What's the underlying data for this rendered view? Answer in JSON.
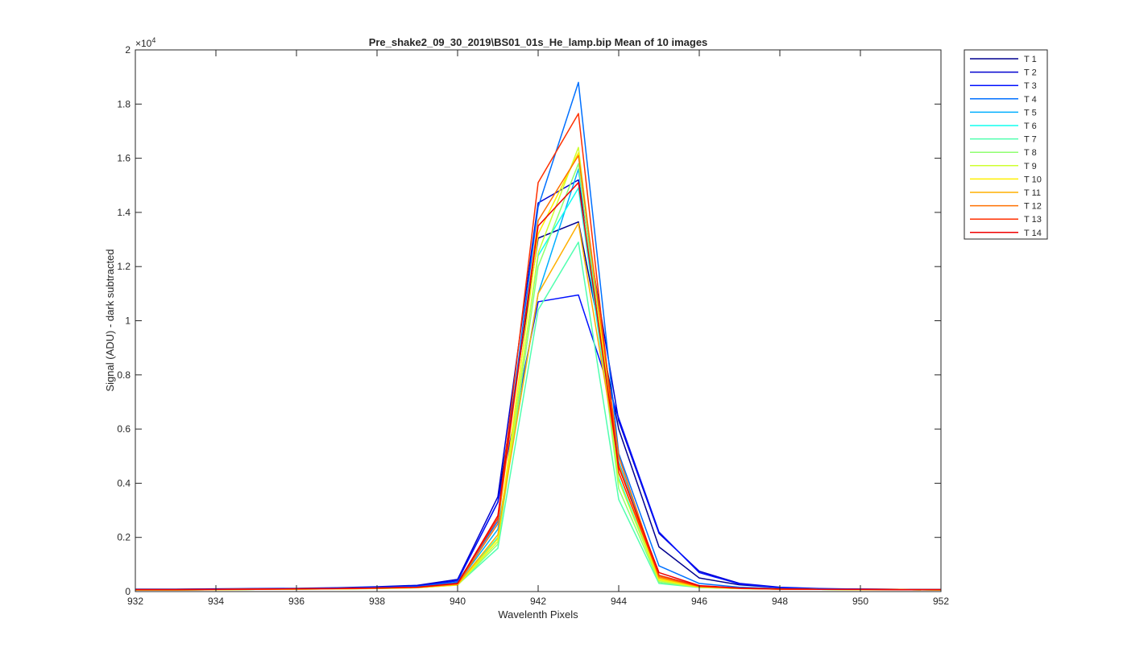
{
  "chart_data": {
    "type": "line",
    "title": "Pre_shake2_09_30_2019\\BS01_01s_He_lamp.bip  Mean of 10 images",
    "xlabel": "Wavelenth Pixels",
    "ylabel": "Signal (ADU) - dark subtracted",
    "exponent_base": "×10",
    "exponent_power": "4",
    "xlim": [
      932,
      952
    ],
    "ylim": [
      0,
      2
    ],
    "y_multiplier": 10000,
    "x_ticks": [
      932,
      934,
      936,
      938,
      940,
      942,
      944,
      946,
      948,
      950,
      952
    ],
    "x_tick_labels": [
      "932",
      "934",
      "936",
      "938",
      "940",
      "942",
      "944",
      "946",
      "948",
      "950",
      "952"
    ],
    "y_ticks": [
      0,
      0.2,
      0.4,
      0.6,
      0.8,
      1,
      1.2,
      1.4,
      1.6,
      1.8,
      2
    ],
    "y_tick_labels": [
      "0",
      "0.2",
      "0.4",
      "0.6",
      "0.8",
      "1",
      "1.2",
      "1.4",
      "1.6",
      "1.8",
      "2"
    ],
    "grid": false,
    "legend_position": "outside-right",
    "x": [
      932,
      933,
      934,
      935,
      936,
      937,
      938,
      939,
      940,
      941,
      942,
      943,
      944,
      945,
      946,
      947,
      948,
      949,
      950,
      951,
      952
    ],
    "series": [
      {
        "name": "T 1",
        "color": "#00008f",
        "values": [
          0.008,
          0.008,
          0.009,
          0.01,
          0.011,
          0.013,
          0.016,
          0.02,
          0.04,
          0.33,
          1.305,
          1.365,
          0.6,
          0.165,
          0.05,
          0.025,
          0.015,
          0.01,
          0.009,
          0.008,
          0.008
        ]
      },
      {
        "name": "T 2",
        "color": "#0000cf",
        "values": [
          0.009,
          0.009,
          0.01,
          0.011,
          0.012,
          0.014,
          0.018,
          0.023,
          0.045,
          0.35,
          1.435,
          1.52,
          0.63,
          0.215,
          0.075,
          0.03,
          0.016,
          0.011,
          0.009,
          0.008,
          0.008
        ]
      },
      {
        "name": "T 3",
        "color": "#0010ff",
        "values": [
          0.008,
          0.008,
          0.009,
          0.01,
          0.011,
          0.013,
          0.016,
          0.02,
          0.04,
          0.33,
          1.07,
          1.095,
          0.64,
          0.22,
          0.07,
          0.028,
          0.015,
          0.01,
          0.009,
          0.008,
          0.008
        ]
      },
      {
        "name": "T 4",
        "color": "#0070ff",
        "values": [
          0.007,
          0.007,
          0.008,
          0.009,
          0.01,
          0.012,
          0.014,
          0.018,
          0.035,
          0.26,
          1.42,
          1.88,
          0.51,
          0.095,
          0.03,
          0.016,
          0.011,
          0.009,
          0.008,
          0.007,
          0.007
        ]
      },
      {
        "name": "T 5",
        "color": "#00afff",
        "values": [
          0.007,
          0.007,
          0.008,
          0.009,
          0.01,
          0.011,
          0.013,
          0.016,
          0.03,
          0.23,
          1.1,
          1.56,
          0.48,
          0.06,
          0.02,
          0.013,
          0.01,
          0.008,
          0.008,
          0.007,
          0.007
        ]
      },
      {
        "name": "T 6",
        "color": "#10ffef",
        "values": [
          0.006,
          0.006,
          0.007,
          0.008,
          0.009,
          0.01,
          0.012,
          0.015,
          0.028,
          0.2,
          1.24,
          1.49,
          0.42,
          0.04,
          0.016,
          0.012,
          0.009,
          0.008,
          0.007,
          0.007,
          0.006
        ]
      },
      {
        "name": "T 7",
        "color": "#50ffaf",
        "values": [
          0.006,
          0.006,
          0.007,
          0.008,
          0.009,
          0.01,
          0.012,
          0.014,
          0.025,
          0.16,
          1.04,
          1.29,
          0.34,
          0.03,
          0.015,
          0.011,
          0.009,
          0.008,
          0.007,
          0.007,
          0.006
        ]
      },
      {
        "name": "T 8",
        "color": "#8fff70",
        "values": [
          0.006,
          0.006,
          0.007,
          0.008,
          0.009,
          0.01,
          0.011,
          0.014,
          0.024,
          0.175,
          1.2,
          1.58,
          0.38,
          0.035,
          0.015,
          0.011,
          0.009,
          0.008,
          0.007,
          0.007,
          0.006
        ]
      },
      {
        "name": "T 9",
        "color": "#cfff30",
        "values": [
          0.006,
          0.006,
          0.007,
          0.008,
          0.009,
          0.01,
          0.011,
          0.014,
          0.024,
          0.185,
          1.25,
          1.64,
          0.41,
          0.04,
          0.016,
          0.011,
          0.009,
          0.008,
          0.007,
          0.007,
          0.006
        ]
      },
      {
        "name": "T 10",
        "color": "#ffef00",
        "values": [
          0.006,
          0.006,
          0.007,
          0.008,
          0.009,
          0.01,
          0.012,
          0.014,
          0.025,
          0.195,
          1.32,
          1.62,
          0.44,
          0.045,
          0.017,
          0.012,
          0.009,
          0.008,
          0.007,
          0.007,
          0.006
        ]
      },
      {
        "name": "T 11",
        "color": "#ffaf00",
        "values": [
          0.006,
          0.006,
          0.007,
          0.008,
          0.009,
          0.01,
          0.012,
          0.015,
          0.026,
          0.21,
          1.1,
          1.36,
          0.47,
          0.05,
          0.018,
          0.012,
          0.009,
          0.008,
          0.007,
          0.007,
          0.006
        ]
      },
      {
        "name": "T 12",
        "color": "#ff7000",
        "values": [
          0.007,
          0.007,
          0.008,
          0.009,
          0.01,
          0.011,
          0.013,
          0.016,
          0.028,
          0.25,
          1.37,
          1.61,
          0.5,
          0.055,
          0.019,
          0.012,
          0.009,
          0.008,
          0.008,
          0.007,
          0.007
        ]
      },
      {
        "name": "T 13",
        "color": "#ff3000",
        "values": [
          0.007,
          0.007,
          0.008,
          0.009,
          0.01,
          0.011,
          0.013,
          0.016,
          0.03,
          0.27,
          1.51,
          1.765,
          0.44,
          0.06,
          0.02,
          0.012,
          0.009,
          0.008,
          0.008,
          0.007,
          0.007
        ]
      },
      {
        "name": "T 14",
        "color": "#ef0000",
        "values": [
          0.007,
          0.007,
          0.008,
          0.009,
          0.01,
          0.011,
          0.013,
          0.016,
          0.03,
          0.28,
          1.35,
          1.51,
          0.46,
          0.07,
          0.022,
          0.013,
          0.01,
          0.008,
          0.008,
          0.007,
          0.007
        ]
      }
    ]
  }
}
